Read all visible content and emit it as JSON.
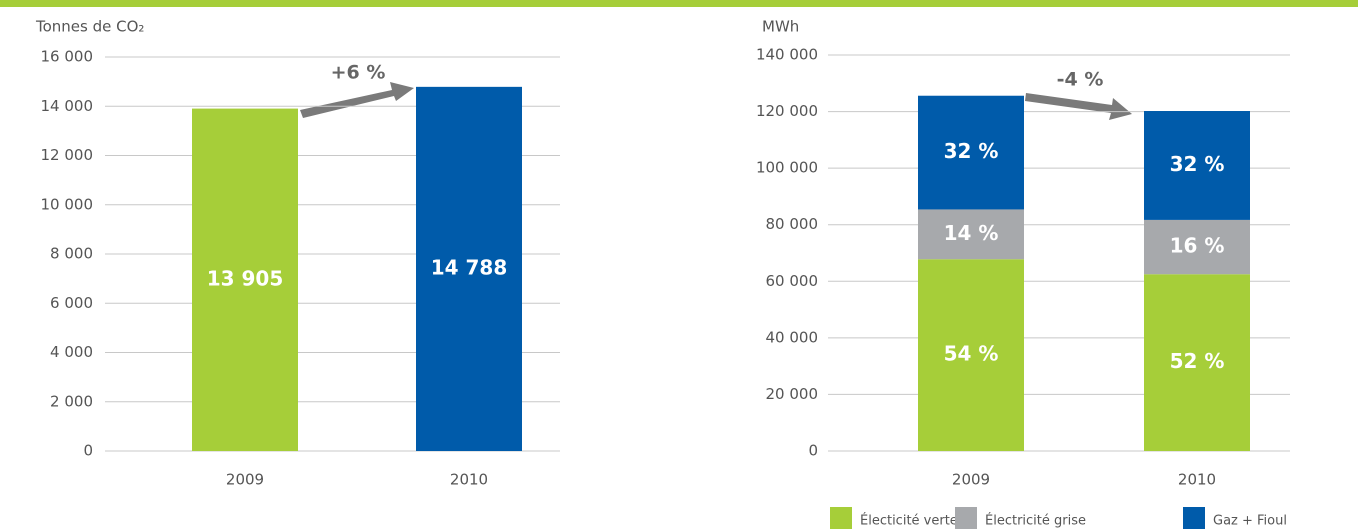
{
  "chart_data": [
    {
      "type": "bar",
      "y_label": "Tonnes de CO₂",
      "categories": [
        "2009",
        "2010"
      ],
      "values": [
        13905,
        14788
      ],
      "value_labels": [
        "13 905",
        "14 788"
      ],
      "colors": [
        "#a6ce39",
        "#005baa"
      ],
      "ylim": [
        0,
        16000
      ],
      "yticks": [
        0,
        {
          "value": 2000,
          "label": "2 000"
        },
        {
          "value": 4000,
          "label": "4 000"
        },
        {
          "value": 6000,
          "label": "6 000"
        },
        {
          "value": 8000,
          "label": "8 000"
        },
        {
          "value": 10000,
          "label": "10 000"
        },
        {
          "value": 12000,
          "label": "12 000"
        },
        {
          "value": 14000,
          "label": "14 000"
        },
        {
          "value": 16000,
          "label": "16 000"
        }
      ],
      "annotation": "+6 %",
      "grid": true
    },
    {
      "type": "stacked_bar",
      "y_label": "MWh",
      "categories": [
        "2009",
        "2010"
      ],
      "series": [
        {
          "name": "Électicité verte",
          "color": "#a6ce39",
          "values": [
            67800,
            62500
          ],
          "labels": [
            "54 %",
            "52 %"
          ]
        },
        {
          "name": "Électricité grise",
          "color": "#a7a9ac",
          "values": [
            17600,
            19200
          ],
          "labels": [
            "14 %",
            "16 %"
          ]
        },
        {
          "name": "Gaz + Fioul",
          "color": "#005baa",
          "values": [
            40200,
            38500
          ],
          "labels": [
            "32 %",
            "32 %"
          ]
        }
      ],
      "ylim": [
        0,
        140000
      ],
      "yticks": [
        0,
        {
          "value": 20000,
          "label": "20 000"
        },
        {
          "value": 40000,
          "label": "40 000"
        },
        {
          "value": 60000,
          "label": "60 000"
        },
        {
          "value": 80000,
          "label": "80 000"
        },
        {
          "value": 100000,
          "label": "100 000"
        },
        {
          "value": 120000,
          "label": "120 000"
        },
        {
          "value": 140000,
          "label": "140 000"
        }
      ],
      "annotation": "-4 %",
      "grid": true,
      "legend": "bottom"
    }
  ]
}
